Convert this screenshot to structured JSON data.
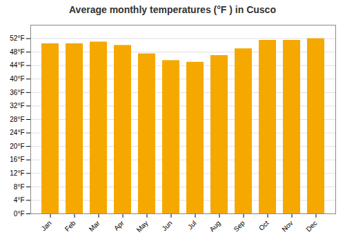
{
  "chart_data": {
    "type": "bar",
    "title": "Average monthly temperatures (°F ) in Cusco",
    "categories": [
      "Jan",
      "Feb",
      "Mar",
      "Apr",
      "May",
      "Jun",
      "Jul",
      "Aug",
      "Sep",
      "Oct",
      "Nov",
      "Dec"
    ],
    "values": [
      50.5,
      50.5,
      51.0,
      50.0,
      47.5,
      45.5,
      45.0,
      47.0,
      49.0,
      51.5,
      51.5,
      52.0
    ],
    "color": "#F5A800",
    "ylim": [
      0,
      56
    ],
    "yticks": [
      {
        "value": 0,
        "label": "0°F"
      },
      {
        "value": 4,
        "label": "4°F"
      },
      {
        "value": 8,
        "label": "8°F"
      },
      {
        "value": 12,
        "label": "12°F"
      },
      {
        "value": 16,
        "label": "16°F"
      },
      {
        "value": 20,
        "label": "20°F"
      },
      {
        "value": 24,
        "label": "24°F"
      },
      {
        "value": 28,
        "label": "28°F"
      },
      {
        "value": 32,
        "label": "32°F"
      },
      {
        "value": 36,
        "label": "36°F"
      },
      {
        "value": 40,
        "label": "40°F"
      },
      {
        "value": 44,
        "label": "44°F"
      },
      {
        "value": 48,
        "label": "48°F"
      },
      {
        "value": 52,
        "label": "52°F"
      }
    ],
    "grid": true
  }
}
